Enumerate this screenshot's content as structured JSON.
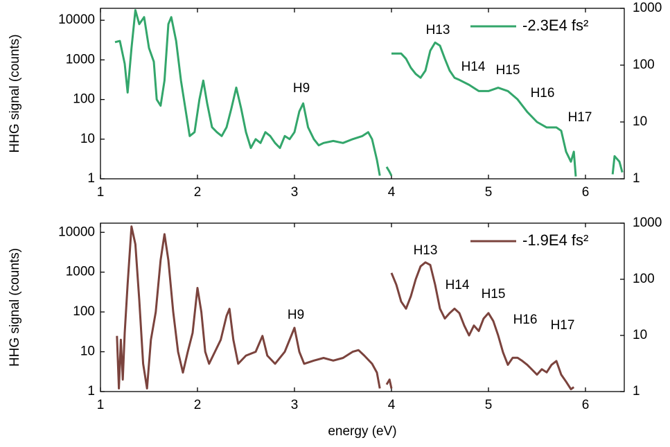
{
  "chart_data": [
    {
      "type": "line",
      "ylabel": "HHG signal (counts)",
      "log_y": true,
      "xlim": [
        1,
        6.4
      ],
      "xticks": [
        1,
        2,
        3,
        4,
        5,
        6
      ],
      "ylim": [
        1,
        20000
      ],
      "yticks": [
        1,
        10,
        100,
        1000,
        10000
      ],
      "y2lim": [
        1,
        1000
      ],
      "y2ticks": [
        1,
        10,
        100,
        1000
      ],
      "legend": "upper right",
      "series": [
        {
          "name": "-2.3E4 fs²",
          "color": "#33a66b",
          "x": [
            1.15,
            1.2,
            1.25,
            1.28,
            1.32,
            1.36,
            1.4,
            1.45,
            1.5,
            1.55,
            1.58,
            1.62,
            1.66,
            1.7,
            1.73,
            1.78,
            1.83,
            1.88,
            1.92,
            1.97,
            2.02,
            2.06,
            2.1,
            2.15,
            2.2,
            2.25,
            2.3,
            2.35,
            2.4,
            2.45,
            2.5,
            2.55,
            2.6,
            2.65,
            2.7,
            2.75,
            2.8,
            2.85,
            2.9,
            2.95,
            3.0,
            3.05,
            3.09,
            3.14,
            3.2,
            3.25,
            3.3,
            3.4,
            3.5,
            3.6,
            3.7,
            3.76,
            3.8,
            3.85,
            3.88,
            3.9,
            3.95,
            3.98,
            4.0
          ],
          "values": [
            2800,
            3000,
            800,
            150,
            2000,
            18000,
            8000,
            12000,
            2000,
            900,
            100,
            70,
            300,
            8000,
            12000,
            3000,
            300,
            50,
            12,
            15,
            100,
            300,
            80,
            20,
            15,
            12,
            20,
            60,
            200,
            60,
            15,
            6,
            10,
            8,
            15,
            12,
            8,
            6,
            12,
            10,
            15,
            50,
            80,
            20,
            10,
            7,
            8,
            9,
            8,
            10,
            12,
            15,
            10,
            3,
            1.2,
            null,
            2,
            1.5,
            1.2
          ]
        },
        {
          "color": "#33a66b",
          "axis": "y2",
          "x": [
            4.0,
            4.1,
            4.15,
            4.2,
            4.25,
            4.3,
            4.35,
            4.4,
            4.45,
            4.5,
            4.55,
            4.6,
            4.65,
            4.7,
            4.8,
            4.9,
            5.0,
            5.1,
            5.2,
            5.3,
            5.4,
            5.5,
            5.6,
            5.7,
            5.75,
            5.8,
            5.85,
            5.88,
            5.9,
            6.0,
            6.28,
            6.3,
            6.35,
            6.38
          ],
          "values": [
            160,
            160,
            130,
            90,
            70,
            60,
            80,
            180,
            250,
            220,
            130,
            80,
            60,
            55,
            45,
            35,
            35,
            40,
            35,
            25,
            15,
            10,
            8,
            8,
            7,
            3,
            2,
            3,
            1.1,
            null,
            1.2,
            2.5,
            2,
            1.3
          ]
        }
      ],
      "annotations": [
        "H9",
        "H13",
        "H14",
        "H15",
        "H16",
        "H17"
      ]
    },
    {
      "type": "line",
      "ylabel": "HHG signal (counts)",
      "xlabel": "energy (eV)",
      "log_y": true,
      "xlim": [
        1,
        6.4
      ],
      "xticks": [
        1,
        2,
        3,
        4,
        5,
        6
      ],
      "ylim": [
        1,
        17000
      ],
      "yticks": [
        1,
        10,
        100,
        1000,
        10000
      ],
      "y2lim": [
        1,
        1000
      ],
      "y2ticks": [
        1,
        10,
        100,
        1000
      ],
      "legend": "upper right",
      "series": [
        {
          "name": "-1.9E4 fs²",
          "color": "#7b433d",
          "x": [
            1.17,
            1.19,
            1.21,
            1.23,
            1.25,
            1.28,
            1.32,
            1.36,
            1.4,
            1.44,
            1.48,
            1.52,
            1.57,
            1.62,
            1.66,
            1.7,
            1.75,
            1.8,
            1.85,
            1.9,
            1.95,
            2.0,
            2.04,
            2.08,
            2.12,
            2.18,
            2.24,
            2.3,
            2.33,
            2.37,
            2.42,
            2.5,
            2.6,
            2.67,
            2.72,
            2.8,
            2.9,
            3.0,
            3.05,
            3.1,
            3.2,
            3.3,
            3.4,
            3.5,
            3.6,
            3.66,
            3.72,
            3.8,
            3.85,
            3.88,
            3.9,
            3.95,
            3.98,
            4.0
          ],
          "values": [
            25,
            1.2,
            20,
            2,
            30,
            500,
            14000,
            5000,
            200,
            5,
            1.2,
            20,
            100,
            2000,
            9000,
            2000,
            100,
            10,
            3,
            10,
            30,
            400,
            100,
            10,
            5,
            10,
            20,
            80,
            120,
            20,
            5,
            8,
            10,
            25,
            8,
            5,
            10,
            40,
            10,
            5,
            6,
            7,
            6,
            7,
            10,
            11,
            8,
            5,
            3,
            1.2,
            null,
            1.5,
            2,
            1.2
          ]
        },
        {
          "color": "#7b433d",
          "axis": "y2",
          "x": [
            4.0,
            4.05,
            4.1,
            4.15,
            4.2,
            4.25,
            4.3,
            4.35,
            4.4,
            4.45,
            4.5,
            4.55,
            4.6,
            4.65,
            4.7,
            4.75,
            4.8,
            4.85,
            4.9,
            4.95,
            5.0,
            5.05,
            5.1,
            5.15,
            5.2,
            5.25,
            5.3,
            5.35,
            5.4,
            5.5,
            5.55,
            5.6,
            5.65,
            5.7,
            5.75,
            5.8,
            5.85,
            5.88
          ],
          "values": [
            130,
            80,
            40,
            30,
            50,
            100,
            170,
            200,
            180,
            80,
            30,
            20,
            25,
            30,
            25,
            15,
            10,
            15,
            12,
            20,
            25,
            18,
            10,
            5,
            3,
            4,
            4,
            3.5,
            3,
            2,
            2.5,
            2.2,
            3,
            3.5,
            2,
            1.5,
            1.1,
            1.2
          ]
        }
      ],
      "annotations": [
        "H9",
        "H13",
        "H14",
        "H15",
        "H16",
        "H17"
      ]
    }
  ]
}
